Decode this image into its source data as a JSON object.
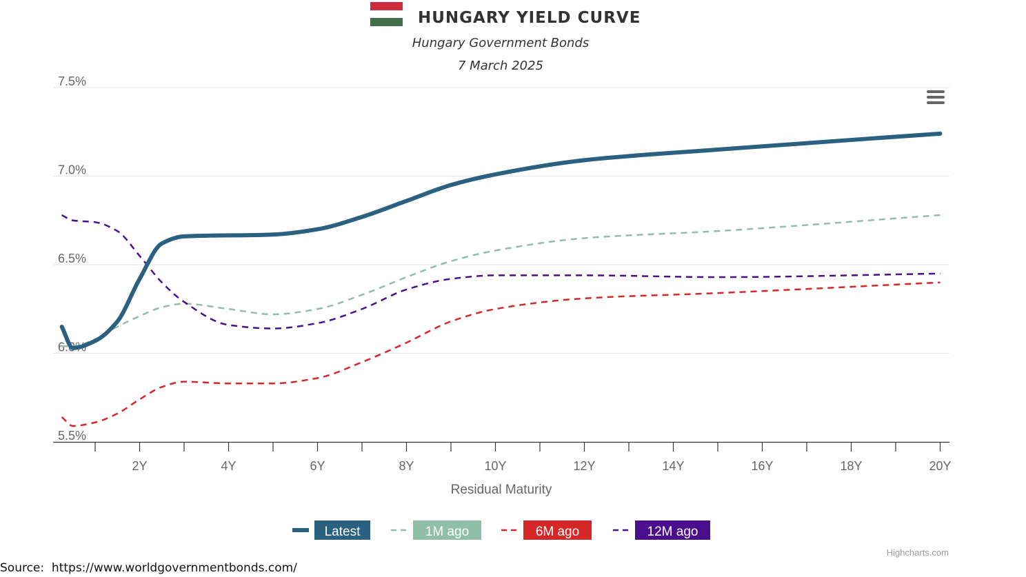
{
  "chart_data": {
    "type": "line",
    "title": "HUNGARY YIELD CURVE",
    "subtitle": "Hungary Government Bonds",
    "date": "7 March 2025",
    "xlabel": "Residual Maturity",
    "ylabel": "",
    "x_unit": "years",
    "xlim": [
      0.1,
      20
    ],
    "ylim": [
      5.5,
      7.5
    ],
    "yticks": [
      {
        "value": 5.5,
        "label": "5.5%"
      },
      {
        "value": 6.0,
        "label": "6.0%"
      },
      {
        "value": 6.5,
        "label": "6.5%"
      },
      {
        "value": 7.0,
        "label": "7.0%"
      },
      {
        "value": 7.5,
        "label": "7.5%"
      }
    ],
    "xticks_labeled": [
      {
        "value": 2,
        "label": "2Y"
      },
      {
        "value": 4,
        "label": "4Y"
      },
      {
        "value": 6,
        "label": "6Y"
      },
      {
        "value": 8,
        "label": "8Y"
      },
      {
        "value": 10,
        "label": "10Y"
      },
      {
        "value": 12,
        "label": "12Y"
      },
      {
        "value": 14,
        "label": "14Y"
      },
      {
        "value": 16,
        "label": "16Y"
      },
      {
        "value": 18,
        "label": "18Y"
      },
      {
        "value": 20,
        "label": "20Y"
      }
    ],
    "grid": "horizontal",
    "legend_position": "bottom-center",
    "series": [
      {
        "name": "Latest",
        "color": "#2a6080",
        "dash": "solid",
        "x": [
          0.25,
          0.5,
          1,
          1.5,
          2,
          2.5,
          3,
          5,
          6,
          7,
          8,
          9,
          10,
          12,
          15,
          20
        ],
        "y": [
          6.15,
          6.03,
          6.07,
          6.18,
          6.42,
          6.62,
          6.66,
          6.67,
          6.7,
          6.77,
          6.86,
          6.95,
          7.01,
          7.09,
          7.15,
          7.24
        ]
      },
      {
        "name": "1M ago",
        "color": "#8fbfa8",
        "dash": "dash",
        "x": [
          0.25,
          0.5,
          1,
          1.5,
          2,
          2.5,
          3,
          4,
          5,
          6,
          7,
          8,
          9,
          10,
          12,
          15,
          20
        ],
        "y": [
          6.04,
          6.04,
          6.08,
          6.15,
          6.21,
          6.26,
          6.28,
          6.25,
          6.22,
          6.25,
          6.33,
          6.43,
          6.52,
          6.58,
          6.65,
          6.69,
          6.78
        ]
      },
      {
        "name": "6M ago",
        "color": "#d62728",
        "dash": "dash",
        "x": [
          0.25,
          0.5,
          1,
          1.5,
          2,
          2.5,
          3,
          4,
          5,
          6,
          7,
          8,
          9,
          10,
          12,
          15,
          20
        ],
        "y": [
          5.64,
          5.59,
          5.61,
          5.66,
          5.74,
          5.81,
          5.84,
          5.83,
          5.83,
          5.86,
          5.95,
          6.06,
          6.18,
          6.25,
          6.31,
          6.34,
          6.4
        ]
      },
      {
        "name": "12M ago",
        "color": "#4b0f8e",
        "dash": "dash",
        "x": [
          0.25,
          0.5,
          1,
          1.5,
          2,
          2.5,
          3,
          4,
          5,
          6,
          7,
          8,
          9,
          10,
          12,
          15,
          20
        ],
        "y": [
          6.78,
          6.75,
          6.74,
          6.69,
          6.55,
          6.4,
          6.29,
          6.16,
          6.14,
          6.17,
          6.25,
          6.36,
          6.42,
          6.44,
          6.44,
          6.43,
          6.45
        ]
      }
    ]
  },
  "source_text": "Source:  https://www.worldgovernmentbonds.com/",
  "credits": "Highcharts.com",
  "menu_icon": "hamburger-menu-icon",
  "flag_colors": [
    "#cd2a3e",
    "#ffffff",
    "#436f4d"
  ]
}
